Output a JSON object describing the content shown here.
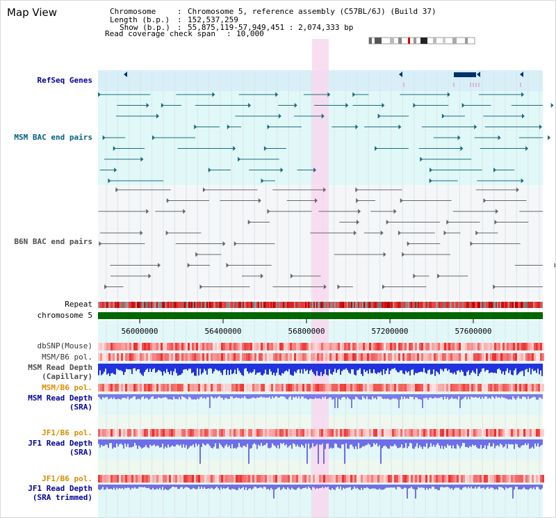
{
  "page_title": "Map View",
  "info": {
    "lines": [
      {
        "key": "Chromosome",
        "val": "Chromosome 5, reference assembly (C57BL/6J) (Build 37)"
      },
      {
        "key": "Length (b.p.)",
        "val": "152,537,259"
      },
      {
        "key": "Show (b.p.)",
        "val": "55,875,119-57,949,451 : 2,074,333 bp"
      },
      {
        "key": "Read coverage check span",
        "val": "10,000"
      }
    ]
  },
  "tracks": {
    "refseq": "RefSeq Genes",
    "msm_bac": "MSM BAC end pairs",
    "b6n_bac": "B6N BAC end pairs",
    "repeat": "Repeat",
    "chromosome": "chromosome 5",
    "dbsnp": "dbSNP(Mouse)",
    "msm_b6_pol_1": "MSM/B6 pol.",
    "msm_read_depth_cap_1": "MSM Read Depth",
    "msm_read_depth_cap_2": "(Capillary)",
    "msm_b6_pol_2": "MSM/B6 pol.",
    "msm_read_depth_sra_1": "MSM Read Depth",
    "msm_read_depth_sra_2": "(SRA)",
    "jf1_b6_pol_1": "JF1/B6 pol.",
    "jf1_read_depth_sra_1": "JF1 Read Depth",
    "jf1_read_depth_sra_2": "(SRA)",
    "jf1_b6_pol_2": "JF1/B6 pol.",
    "jf1_read_depth_trim_1": "JF1 Read Depth",
    "jf1_read_depth_trim_2": "(SRA trimmed)"
  },
  "axis": {
    "ticks": [
      "56000000",
      "56400000",
      "56800000",
      "57200000",
      "57600000"
    ]
  },
  "colors": {
    "gene_dark": "#002f6c",
    "msm_pair": "#1d6b7a",
    "b6n_pair": "#666666",
    "highlight": "#f8d8f0",
    "chromosome_bar": "#006600",
    "refseq_band": "#d8eff8",
    "bac_band": "#e0f8f8"
  }
}
